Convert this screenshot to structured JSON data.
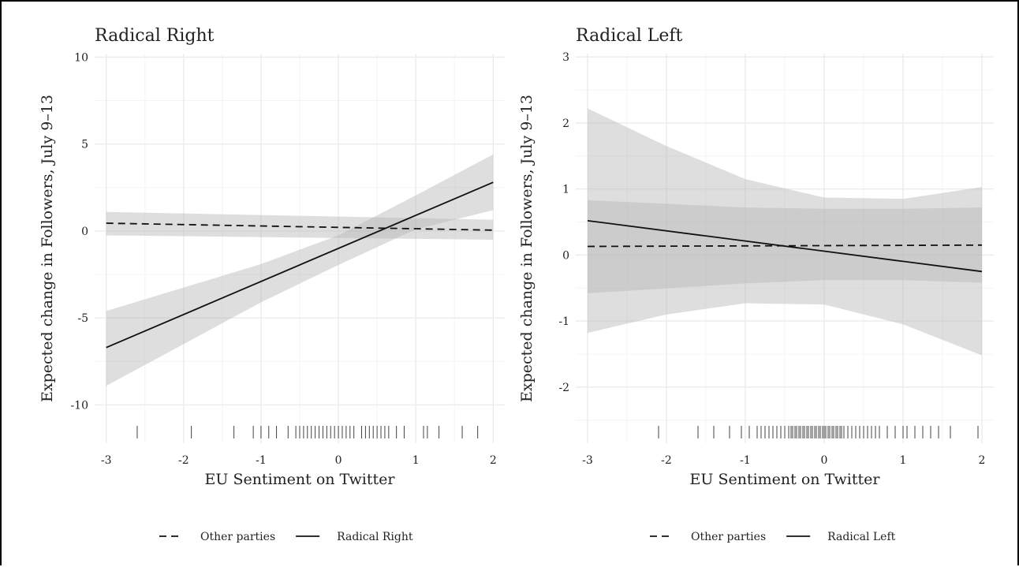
{
  "chart_data": [
    {
      "type": "line",
      "title": "Radical Right",
      "xlabel": "EU Sentiment on Twitter",
      "ylabel": "Expected change in Followers, July 9–13",
      "xlim": [
        -3.15,
        2.15
      ],
      "ylim": [
        -12.2,
        10.2
      ],
      "xticks": [
        -3,
        -2,
        -1,
        0,
        1,
        2
      ],
      "yticks": [
        -10,
        -5,
        0,
        5,
        10
      ],
      "grid": true,
      "legend_position": "bottom",
      "series": [
        {
          "name": "Other parties",
          "dash": "dashed",
          "x": [
            -3,
            2
          ],
          "y": [
            0.45,
            0.05
          ],
          "ci_x": [
            -3,
            2
          ],
          "ci_lower": [
            -0.25,
            -0.5
          ],
          "ci_upper": [
            1.1,
            0.65
          ]
        },
        {
          "name": "Radical Right",
          "dash": "solid",
          "x": [
            -3,
            2
          ],
          "y": [
            -6.7,
            2.8
          ],
          "ci_x": [
            -3,
            -1,
            0,
            1,
            2
          ],
          "ci_lower": [
            -8.9,
            -4.1,
            -1.95,
            0.1,
            1.2
          ],
          "ci_upper": [
            -4.6,
            -1.9,
            -0.25,
            2.05,
            4.4
          ]
        }
      ],
      "rug": [
        -2.6,
        -1.9,
        -1.35,
        -1.1,
        -1.0,
        -0.9,
        -0.8,
        -0.65,
        -0.55,
        -0.5,
        -0.45,
        -0.4,
        -0.35,
        -0.3,
        -0.25,
        -0.2,
        -0.15,
        -0.1,
        -0.05,
        0.0,
        0.05,
        0.1,
        0.15,
        0.2,
        0.3,
        0.35,
        0.4,
        0.45,
        0.5,
        0.55,
        0.6,
        0.65,
        0.75,
        0.85,
        1.1,
        1.15,
        1.3,
        1.6,
        1.8
      ]
    },
    {
      "type": "line",
      "title": "Radical Left",
      "xlabel": "EU Sentiment on Twitter",
      "ylabel": "Expected change in Followers, July 9–13",
      "xlim": [
        -3.15,
        2.15
      ],
      "ylim": [
        -2.85,
        3.05
      ],
      "xticks": [
        -3,
        -2,
        -1,
        0,
        1,
        2
      ],
      "yticks": [
        -2,
        -1,
        0,
        1,
        2,
        3
      ],
      "grid": true,
      "legend_position": "bottom",
      "series": [
        {
          "name": "Other parties",
          "dash": "dashed",
          "x": [
            -3,
            2
          ],
          "y": [
            0.13,
            0.15
          ],
          "ci_x": [
            -3,
            -1,
            0,
            1,
            2
          ],
          "ci_lower": [
            -0.58,
            -0.43,
            -0.38,
            -0.38,
            -0.42
          ],
          "ci_upper": [
            0.83,
            0.72,
            0.7,
            0.7,
            0.72
          ]
        },
        {
          "name": "Radical Left",
          "dash": "solid",
          "x": [
            -3,
            2
          ],
          "y": [
            0.52,
            -0.25
          ],
          "ci_x": [
            -3,
            -2,
            -1,
            0,
            1,
            2
          ],
          "ci_lower": [
            -1.18,
            -0.9,
            -0.73,
            -0.75,
            -1.05,
            -1.52
          ],
          "ci_upper": [
            2.22,
            1.65,
            1.15,
            0.87,
            0.85,
            1.03
          ]
        }
      ],
      "rug": [
        -2.1,
        -1.6,
        -1.4,
        -1.2,
        -1.05,
        -0.95,
        -0.85,
        -0.8,
        -0.75,
        -0.7,
        -0.65,
        -0.6,
        -0.55,
        -0.5,
        -0.45,
        -0.42,
        -0.4,
        -0.37,
        -0.35,
        -0.32,
        -0.3,
        -0.27,
        -0.25,
        -0.22,
        -0.2,
        -0.17,
        -0.15,
        -0.12,
        -0.1,
        -0.07,
        -0.05,
        -0.02,
        0.0,
        0.02,
        0.05,
        0.07,
        0.1,
        0.12,
        0.15,
        0.17,
        0.2,
        0.22,
        0.25,
        0.3,
        0.35,
        0.4,
        0.45,
        0.5,
        0.55,
        0.6,
        0.65,
        0.7,
        0.8,
        0.9,
        1.0,
        1.05,
        1.15,
        1.25,
        1.35,
        1.45,
        1.6,
        1.95
      ]
    }
  ],
  "legends": [
    {
      "items": [
        {
          "label": "Other parties",
          "dash": "dashed"
        },
        {
          "label": "Radical Right",
          "dash": "solid"
        }
      ]
    },
    {
      "items": [
        {
          "label": "Other parties",
          "dash": "dashed"
        },
        {
          "label": "Radical Left",
          "dash": "solid"
        }
      ]
    }
  ],
  "colors": {
    "ribbon": "#d9d9d9",
    "grid_major": "#ebebeb",
    "grid_minor": "#f4f4f4",
    "line": "#111111"
  }
}
